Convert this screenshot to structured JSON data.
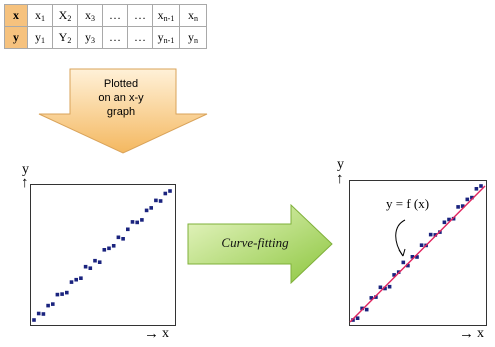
{
  "table": {
    "rows": [
      {
        "header": "x",
        "cells": [
          [
            "x",
            "1"
          ],
          [
            "X",
            "2"
          ],
          [
            "x",
            "3"
          ],
          [
            "…",
            ""
          ],
          [
            "…",
            ""
          ],
          [
            "x",
            "n-1"
          ],
          [
            "x",
            "n"
          ]
        ]
      },
      {
        "header": "y",
        "cells": [
          [
            "y",
            "1"
          ],
          [
            "Y",
            "2"
          ],
          [
            "y",
            "3"
          ],
          [
            "…",
            ""
          ],
          [
            "…",
            ""
          ],
          [
            "y",
            "n-1"
          ],
          [
            "y",
            "n"
          ]
        ]
      }
    ]
  },
  "down_arrow": {
    "label": "Plotted\non an x-y\ngraph"
  },
  "fit_arrow": {
    "label": "Curve-fitting"
  },
  "left_plot": {
    "ylabel": "y",
    "xlabel": "x",
    "up_arrow": "↑",
    "right_arrow": "→"
  },
  "right_plot": {
    "ylabel": "y",
    "xlabel": "x",
    "up_arrow": "↑",
    "right_arrow": "→",
    "equation": "y = f (x)"
  },
  "colors": {
    "table_header": "#f6c27e",
    "down_arrow_fill": "#fbd6a0",
    "fit_arrow_fill": "#a8d84a",
    "points": "#1a237e",
    "fit_line": "#e0245e"
  }
}
